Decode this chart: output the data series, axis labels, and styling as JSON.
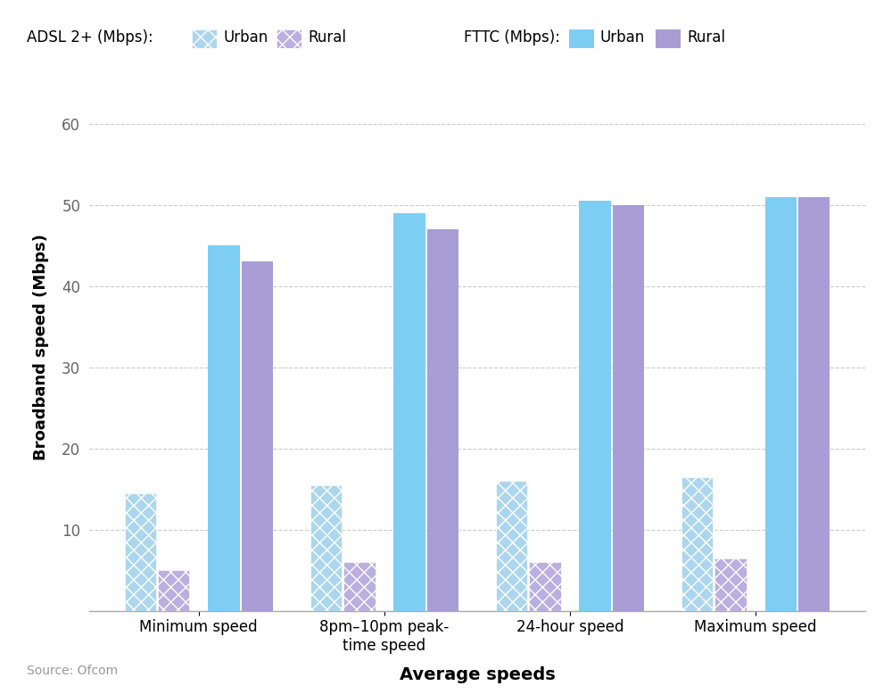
{
  "categories": [
    "Minimum speed",
    "8pm–10pm peak-\ntime speed",
    "24-hour speed",
    "Maximum speed"
  ],
  "adsl_urban": [
    14.5,
    15.5,
    16.0,
    16.5
  ],
  "adsl_rural": [
    5.0,
    6.0,
    6.0,
    6.5
  ],
  "fttc_urban": [
    45.0,
    49.0,
    50.5,
    51.0
  ],
  "fttc_rural": [
    43.0,
    47.0,
    50.0,
    51.0
  ],
  "adsl_urban_color": "#acd6ee",
  "adsl_rural_color": "#bbaee0",
  "fttc_urban_color": "#7ecef4",
  "fttc_rural_color": "#a89dd4",
  "xlabel": "Average speeds",
  "ylabel": "Broadband speed (Mbps)",
  "ylim": [
    0,
    65
  ],
  "yticks": [
    0,
    10,
    20,
    30,
    40,
    50,
    60
  ],
  "source": "Source: Ofcom",
  "legend_adsl_label": "ADSL 2+ (Mbps):",
  "legend_fttc_label": "FTTC (Mbps):",
  "legend_urban": "Urban",
  "legend_rural": "Rural"
}
